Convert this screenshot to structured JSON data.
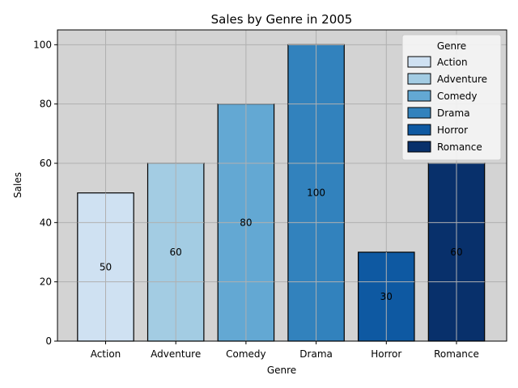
{
  "chart_data": {
    "type": "bar",
    "title": "Sales by Genre in 2005",
    "xlabel": "Genre",
    "ylabel": "Sales",
    "categories": [
      "Action",
      "Adventure",
      "Comedy",
      "Drama",
      "Horror",
      "Romance"
    ],
    "values": [
      50,
      60,
      80,
      100,
      30,
      60
    ],
    "colors": [
      "#cfe1f2",
      "#a3cce3",
      "#63a8d3",
      "#3282bd",
      "#0e59a2",
      "#08306b"
    ],
    "ylim": [
      0,
      105
    ],
    "yticks": [
      0,
      20,
      40,
      60,
      80,
      100
    ],
    "grid": true,
    "plot_background": "#d3d3d3",
    "legend": {
      "title": "Genre",
      "placement": "top-right",
      "entries": [
        "Action",
        "Adventure",
        "Comedy",
        "Drama",
        "Horror",
        "Romance"
      ]
    }
  }
}
